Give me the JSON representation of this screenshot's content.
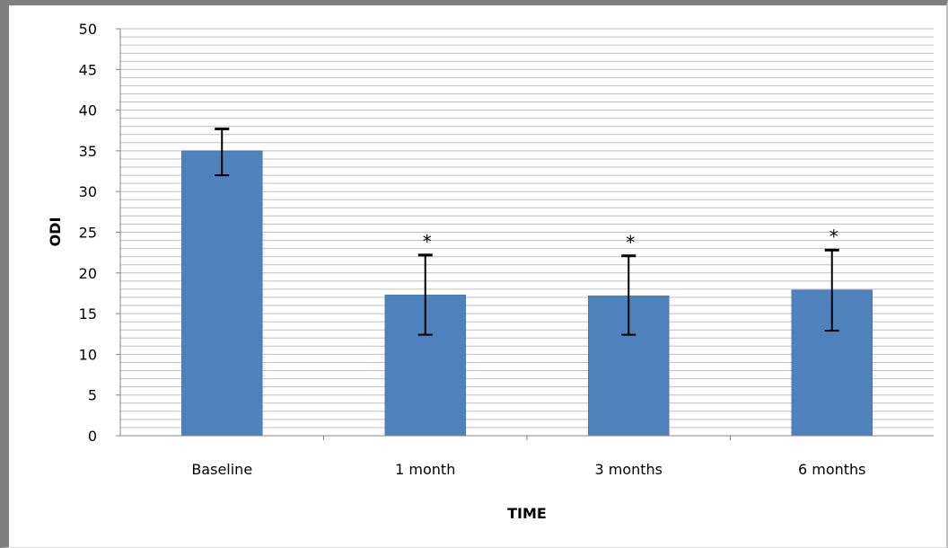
{
  "chart_data": {
    "type": "bar",
    "title": "",
    "xlabel": "TIME",
    "ylabel": "ODI",
    "ylim": [
      0,
      50
    ],
    "yticks": [
      0,
      5,
      10,
      15,
      20,
      25,
      30,
      35,
      40,
      45,
      50
    ],
    "minor_grid_step": 1,
    "grid": true,
    "legend": "none",
    "categories": [
      "Baseline",
      "1 month",
      "3 months",
      "6 months"
    ],
    "values": [
      35.0,
      17.3,
      17.2,
      17.9
    ],
    "error_low": [
      32.0,
      12.4,
      12.4,
      12.9
    ],
    "error_high": [
      37.7,
      22.2,
      22.1,
      22.8
    ],
    "annotations": [
      "",
      "*",
      "*",
      "*"
    ],
    "colors": {
      "bar": "#4f81bd",
      "bar_edge": "#3f6fa8",
      "grid": "#bfbfbf",
      "axis": "#868686",
      "error_bar": "#000000"
    }
  }
}
